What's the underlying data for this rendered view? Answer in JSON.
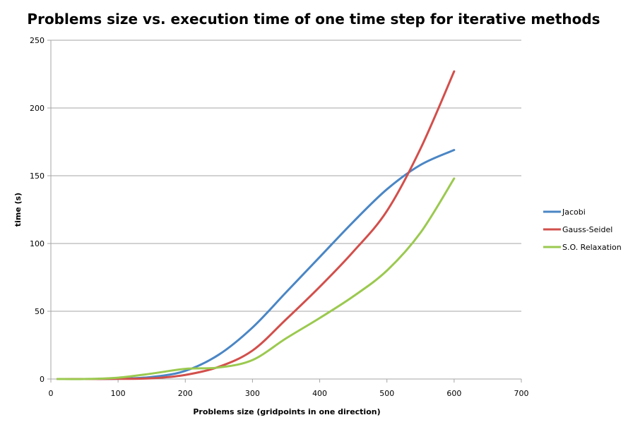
{
  "chart_data": {
    "type": "line",
    "title": "Problems size vs. execution time of one time step for iterative methods",
    "xlabel": "Problems size (gridpoints in one direction)",
    "ylabel": "time (s)",
    "xlim": [
      0,
      700
    ],
    "ylim": [
      0,
      250
    ],
    "x_ticks": [
      0,
      100,
      200,
      300,
      400,
      500,
      600,
      700
    ],
    "y_ticks": [
      0,
      50,
      100,
      150,
      200,
      250
    ],
    "grid": "horizontal",
    "legend_position": "right",
    "series": [
      {
        "name": "Jacobi",
        "color": "#4a86c5",
        "x": [
          10,
          50,
          100,
          150,
          200,
          250,
          300,
          350,
          400,
          450,
          500,
          550,
          600
        ],
        "y": [
          0,
          0,
          0.2,
          1.5,
          6,
          18,
          38,
          64,
          90,
          116,
          140,
          158,
          169
        ]
      },
      {
        "name": "Gauss-Seidel",
        "color": "#d24f4b",
        "x": [
          10,
          50,
          100,
          150,
          200,
          250,
          300,
          350,
          400,
          450,
          500,
          550,
          600
        ],
        "y": [
          0,
          0,
          0.1,
          0.5,
          3,
          9,
          21,
          44,
          68,
          94,
          124,
          170,
          227
        ]
      },
      {
        "name": "S.O. Relaxation",
        "color": "#9bc94f",
        "x": [
          10,
          50,
          100,
          150,
          200,
          250,
          300,
          350,
          400,
          450,
          500,
          550,
          600
        ],
        "y": [
          0,
          0,
          1,
          4,
          7.5,
          8.5,
          14,
          30,
          45,
          61,
          80,
          108,
          148
        ]
      }
    ]
  }
}
